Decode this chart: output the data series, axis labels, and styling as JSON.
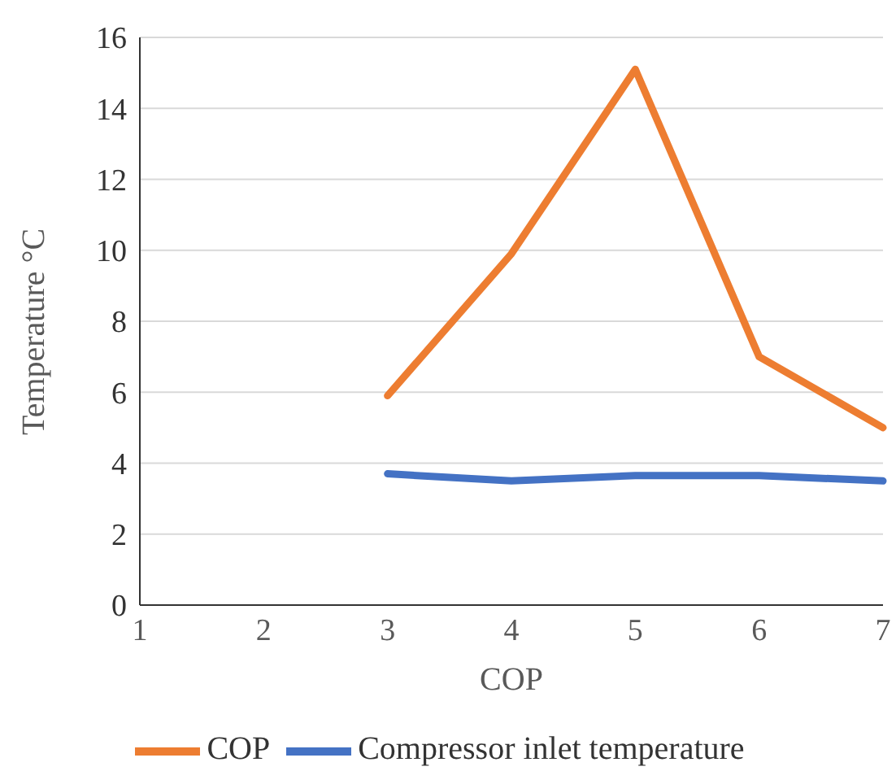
{
  "chart_data": {
    "type": "line",
    "xlabel": "COP",
    "ylabel": "Temperature °C",
    "categories": [
      "1",
      "2",
      "3",
      "4",
      "5",
      "6",
      "7"
    ],
    "series": [
      {
        "name": "Compressor inlet temperature",
        "color": "#4472c4",
        "values": [
          null,
          null,
          3.7,
          3.5,
          3.65,
          3.65,
          3.5
        ]
      },
      {
        "name": "COP",
        "color": "#ed7d31",
        "values": [
          null,
          null,
          5.9,
          9.9,
          15.1,
          7.0,
          5.0
        ]
      }
    ],
    "ylim": [
      0,
      16
    ],
    "yticks": [
      0,
      2,
      4,
      6,
      8,
      10,
      12,
      14,
      16
    ],
    "grid": "y",
    "legend": "bottom",
    "marker": "none",
    "line_style": "solid"
  }
}
